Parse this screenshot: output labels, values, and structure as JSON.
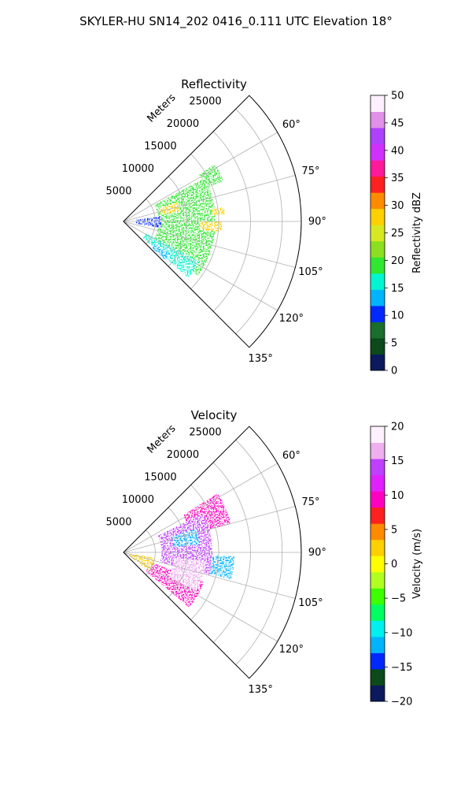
{
  "suptitle": "SKYLER-HU  SN14_202  0416_0.111 UTC Elevation 18°",
  "chart_data": [
    {
      "type": "polar-sector",
      "title": "Reflectivity",
      "radial_label": "Meters",
      "radial_ticks": [
        5000,
        10000,
        15000,
        20000,
        25000
      ],
      "radial_tick_labels": [
        "5000",
        "10000",
        "15000",
        "20000",
        "25000"
      ],
      "rmax": 28000,
      "theta_range_deg": [
        45,
        135
      ],
      "theta_ticks": [
        60,
        75,
        90,
        105,
        120,
        135
      ],
      "theta_tick_labels": [
        "60°",
        "75°",
        "90°",
        "105°",
        "120°",
        "135°"
      ],
      "grid": true,
      "field": "reflectivity",
      "colorbar": {
        "label": "Reflectivity dBZ",
        "vmin": 0,
        "vmax": 50,
        "ticks": [
          0,
          5,
          10,
          15,
          20,
          25,
          30,
          35,
          40,
          45,
          50
        ],
        "tick_labels": [
          "0",
          "5",
          "10",
          "15",
          "20",
          "25",
          "30",
          "35",
          "40",
          "45",
          "50"
        ],
        "stops": [
          "#0a1a5c",
          "#0b4a1a",
          "#1a6e2e",
          "#0028ff",
          "#00b4ff",
          "#00f5d0",
          "#30e830",
          "#8ae020",
          "#d8e820",
          "#ffd000",
          "#ff8a00",
          "#ff2020",
          "#ff1a9a",
          "#d030ff",
          "#b040ff",
          "#e090e8",
          "#fff0ff"
        ]
      },
      "echo_regions_deg_m": [
        {
          "theta": [
            58,
            68
          ],
          "r": [
            14000,
            17000
          ],
          "value": 18
        },
        {
          "theta": [
            62,
            126
          ],
          "r": [
            5500,
            14500
          ],
          "value": 19
        },
        {
          "theta": [
            118,
            131
          ],
          "r": [
            4000,
            13500
          ],
          "value": 17
        },
        {
          "theta": [
            70,
            80
          ],
          "r": [
            6000,
            9000
          ],
          "value": 27
        },
        {
          "theta": [
            82,
            86
          ],
          "r": [
            14000,
            16000
          ],
          "value": 29
        },
        {
          "theta": [
            90,
            96
          ],
          "r": [
            12000,
            15500
          ],
          "value": 27
        },
        {
          "theta": [
            82,
            100
          ],
          "r": [
            2000,
            6000
          ],
          "value": 9
        },
        {
          "theta": [
            125,
            133
          ],
          "r": [
            6000,
            9000
          ],
          "value": 12
        }
      ]
    },
    {
      "type": "polar-sector",
      "title": "Velocity",
      "radial_label": "Meters",
      "radial_ticks": [
        5000,
        10000,
        15000,
        20000,
        25000
      ],
      "radial_tick_labels": [
        "5000",
        "10000",
        "15000",
        "20000",
        "25000"
      ],
      "rmax": 28000,
      "theta_range_deg": [
        45,
        135
      ],
      "theta_ticks": [
        60,
        75,
        90,
        105,
        120,
        135
      ],
      "theta_tick_labels": [
        "60°",
        "75°",
        "90°",
        "105°",
        "120°",
        "135°"
      ],
      "grid": true,
      "field": "velocity",
      "colorbar": {
        "label": "Velocity (m/s)",
        "vmin": -20,
        "vmax": 20,
        "ticks": [
          -20,
          -15,
          -10,
          -5,
          0,
          5,
          10,
          15,
          20
        ],
        "tick_labels": [
          "−20",
          "−15",
          "−10",
          "−5",
          "0",
          "5",
          "10",
          "15",
          "20"
        ],
        "stops": [
          "#0a1a5c",
          "#0b4a1a",
          "#0028ff",
          "#00b4ff",
          "#00f0f0",
          "#00ff60",
          "#3cff00",
          "#b0ff20",
          "#ffff00",
          "#ffd000",
          "#ff8a00",
          "#ff2020",
          "#ff00c0",
          "#e020ff",
          "#c040ff",
          "#f0b0f0",
          "#fff0ff"
        ]
      },
      "echo_regions_deg_m": [
        {
          "theta": [
            58,
            75
          ],
          "r": [
            11000,
            17500
          ],
          "value": 10
        },
        {
          "theta": [
            64,
            105
          ],
          "r": [
            6000,
            14000
          ],
          "value": 15
        },
        {
          "theta": [
            72,
            84
          ],
          "r": [
            8000,
            12000
          ],
          "value": -11
        },
        {
          "theta": [
            92,
            104
          ],
          "r": [
            14000,
            17500
          ],
          "value": -12
        },
        {
          "theta": [
            110,
            130
          ],
          "r": [
            4500,
            13500
          ],
          "value": 10
        },
        {
          "theta": [
            96,
            118
          ],
          "r": [
            8000,
            13000
          ],
          "value": 16
        },
        {
          "theta": [
            100,
            125
          ],
          "r": [
            1000,
            5000
          ],
          "value": 2
        }
      ]
    }
  ]
}
